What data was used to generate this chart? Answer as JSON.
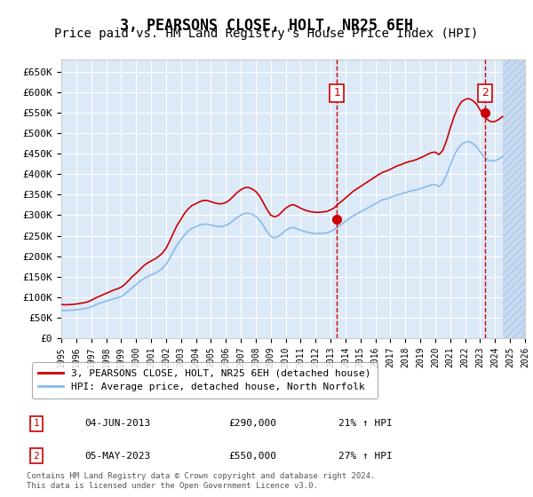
{
  "title": "3, PEARSONS CLOSE, HOLT, NR25 6EH",
  "subtitle": "Price paid vs. HM Land Registry's House Price Index (HPI)",
  "ylabel": "",
  "ylim": [
    0,
    680000
  ],
  "yticks": [
    0,
    50000,
    100000,
    150000,
    200000,
    250000,
    300000,
    350000,
    400000,
    450000,
    500000,
    550000,
    600000,
    650000
  ],
  "ytick_labels": [
    "£0",
    "£50K",
    "£100K",
    "£150K",
    "£200K",
    "£250K",
    "£300K",
    "£350K",
    "£400K",
    "£450K",
    "£500K",
    "£550K",
    "£600K",
    "£650K"
  ],
  "year_start": 1995,
  "year_end": 2026,
  "background_color": "#ffffff",
  "plot_bg_color": "#dce9f7",
  "hatch_color": "#b0c8e8",
  "grid_color": "#ffffff",
  "line1_color": "#cc0000",
  "line2_color": "#88bbee",
  "title_fontsize": 12,
  "subtitle_fontsize": 10,
  "transactions": [
    {
      "date": "2013-06-04",
      "price": 290000,
      "label": "1",
      "hpi_pct": 21
    },
    {
      "date": "2023-05-05",
      "price": 550000,
      "label": "2",
      "hpi_pct": 27
    }
  ],
  "legend_label1": "3, PEARSONS CLOSE, HOLT, NR25 6EH (detached house)",
  "legend_label2": "HPI: Average price, detached house, North Norfolk",
  "footer": "Contains HM Land Registry data © Crown copyright and database right 2024.\nThis data is licensed under the Open Government Licence v3.0.",
  "hpi_data_x": [
    1995.0,
    1995.25,
    1995.5,
    1995.75,
    1996.0,
    1996.25,
    1996.5,
    1996.75,
    1997.0,
    1997.25,
    1997.5,
    1997.75,
    1998.0,
    1998.25,
    1998.5,
    1998.75,
    1999.0,
    1999.25,
    1999.5,
    1999.75,
    2000.0,
    2000.25,
    2000.5,
    2000.75,
    2001.0,
    2001.25,
    2001.5,
    2001.75,
    2002.0,
    2002.25,
    2002.5,
    2002.75,
    2003.0,
    2003.25,
    2003.5,
    2003.75,
    2004.0,
    2004.25,
    2004.5,
    2004.75,
    2005.0,
    2005.25,
    2005.5,
    2005.75,
    2006.0,
    2006.25,
    2006.5,
    2006.75,
    2007.0,
    2007.25,
    2007.5,
    2007.75,
    2008.0,
    2008.25,
    2008.5,
    2008.75,
    2009.0,
    2009.25,
    2009.5,
    2009.75,
    2010.0,
    2010.25,
    2010.5,
    2010.75,
    2011.0,
    2011.25,
    2011.5,
    2011.75,
    2012.0,
    2012.25,
    2012.5,
    2012.75,
    2013.0,
    2013.25,
    2013.5,
    2013.75,
    2014.0,
    2014.25,
    2014.5,
    2014.75,
    2015.0,
    2015.25,
    2015.5,
    2015.75,
    2016.0,
    2016.25,
    2016.5,
    2016.75,
    2017.0,
    2017.25,
    2017.5,
    2017.75,
    2018.0,
    2018.25,
    2018.5,
    2018.75,
    2019.0,
    2019.25,
    2019.5,
    2019.75,
    2020.0,
    2020.25,
    2020.5,
    2020.75,
    2021.0,
    2021.25,
    2021.5,
    2021.75,
    2022.0,
    2022.25,
    2022.5,
    2022.75,
    2023.0,
    2023.25,
    2023.5,
    2023.75,
    2024.0,
    2024.25,
    2024.5
  ],
  "hpi_data_y": [
    68000,
    67000,
    67500,
    68000,
    69000,
    70000,
    71500,
    73000,
    76000,
    80000,
    84000,
    87000,
    90000,
    93000,
    96000,
    98000,
    101000,
    107000,
    115000,
    123000,
    130000,
    138000,
    145000,
    150000,
    154000,
    158000,
    163000,
    170000,
    180000,
    195000,
    212000,
    228000,
    240000,
    252000,
    262000,
    268000,
    272000,
    276000,
    278000,
    278000,
    276000,
    274000,
    272000,
    272000,
    275000,
    280000,
    287000,
    294000,
    300000,
    304000,
    305000,
    302000,
    297000,
    288000,
    275000,
    260000,
    248000,
    245000,
    248000,
    255000,
    263000,
    268000,
    270000,
    267000,
    263000,
    260000,
    258000,
    256000,
    255000,
    255000,
    256000,
    257000,
    260000,
    265000,
    272000,
    278000,
    285000,
    292000,
    298000,
    303000,
    308000,
    313000,
    318000,
    323000,
    328000,
    333000,
    338000,
    340000,
    343000,
    347000,
    350000,
    352000,
    355000,
    358000,
    360000,
    362000,
    365000,
    368000,
    371000,
    374000,
    375000,
    370000,
    378000,
    398000,
    422000,
    445000,
    462000,
    473000,
    478000,
    480000,
    475000,
    468000,
    455000,
    443000,
    435000,
    432000,
    433000,
    437000,
    443000
  ],
  "price_index_data_x": [
    1995.0,
    1995.25,
    1995.5,
    1995.75,
    1996.0,
    1996.25,
    1996.5,
    1996.75,
    1997.0,
    1997.25,
    1997.5,
    1997.75,
    1998.0,
    1998.25,
    1998.5,
    1998.75,
    1999.0,
    1999.25,
    1999.5,
    1999.75,
    2000.0,
    2000.25,
    2000.5,
    2000.75,
    2001.0,
    2001.25,
    2001.5,
    2001.75,
    2002.0,
    2002.25,
    2002.5,
    2002.75,
    2003.0,
    2003.25,
    2003.5,
    2003.75,
    2004.0,
    2004.25,
    2004.5,
    2004.75,
    2005.0,
    2005.25,
    2005.5,
    2005.75,
    2006.0,
    2006.25,
    2006.5,
    2006.75,
    2007.0,
    2007.25,
    2007.5,
    2007.75,
    2008.0,
    2008.25,
    2008.5,
    2008.75,
    2009.0,
    2009.25,
    2009.5,
    2009.75,
    2010.0,
    2010.25,
    2010.5,
    2010.75,
    2011.0,
    2011.25,
    2011.5,
    2011.75,
    2012.0,
    2012.25,
    2012.5,
    2012.75,
    2013.0,
    2013.25,
    2013.5,
    2013.75,
    2014.0,
    2014.25,
    2014.5,
    2014.75,
    2015.0,
    2015.25,
    2015.5,
    2015.75,
    2016.0,
    2016.25,
    2016.5,
    2016.75,
    2017.0,
    2017.25,
    2017.5,
    2017.75,
    2018.0,
    2018.25,
    2018.5,
    2018.75,
    2019.0,
    2019.25,
    2019.5,
    2019.75,
    2020.0,
    2020.25,
    2020.5,
    2020.75,
    2021.0,
    2021.25,
    2021.5,
    2021.75,
    2022.0,
    2022.25,
    2022.5,
    2022.75,
    2023.0,
    2023.25,
    2023.5,
    2023.75,
    2024.0,
    2024.25,
    2024.5
  ],
  "price_index_data_y": [
    82000,
    81000,
    81500,
    82000,
    83000,
    84500,
    86000,
    88000,
    92000,
    97000,
    101000,
    105000,
    109000,
    113000,
    117000,
    120000,
    124000,
    131000,
    140000,
    150000,
    158000,
    167000,
    176000,
    183000,
    188000,
    193000,
    199000,
    207000,
    219000,
    237000,
    257000,
    276000,
    290000,
    305000,
    316000,
    324000,
    328000,
    333000,
    336000,
    336000,
    333000,
    330000,
    328000,
    328000,
    331000,
    337000,
    346000,
    355000,
    362000,
    367000,
    368000,
    364000,
    358000,
    347000,
    331000,
    314000,
    300000,
    296000,
    299000,
    308000,
    317000,
    323000,
    326000,
    322000,
    317000,
    313000,
    310000,
    308000,
    307000,
    307000,
    308000,
    309000,
    313000,
    318000,
    327000,
    334000,
    342000,
    350000,
    358000,
    364000,
    370000,
    376000,
    382000,
    388000,
    394000,
    400000,
    405000,
    408000,
    412000,
    417000,
    421000,
    424000,
    428000,
    431000,
    433000,
    436000,
    440000,
    444000,
    449000,
    453000,
    454000,
    448000,
    458000,
    482000,
    512000,
    540000,
    562000,
    577000,
    583000,
    585000,
    580000,
    572000,
    557000,
    543000,
    533000,
    528000,
    529000,
    534000,
    541000
  ]
}
